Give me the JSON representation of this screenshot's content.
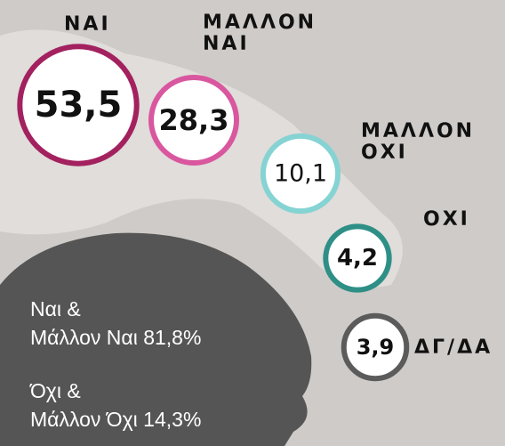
{
  "chart_data": {
    "type": "bubble",
    "categories": [
      "ΝΑΙ",
      "ΜΑΛΛΟΝ ΝΑΙ",
      "ΜΑΛΛΟΝ ΟΧΙ",
      "ΟΧΙ",
      "ΔΓ/ΔΑ"
    ],
    "values": [
      53.5,
      28.3,
      10.1,
      4.2,
      3.9
    ],
    "value_labels": [
      "53,5",
      "28,3",
      "10,1",
      "4,2",
      "3,9"
    ],
    "colors": [
      "#a3215f",
      "#d9579f",
      "#86d3d3",
      "#2e8f86",
      "#5b5b5b"
    ],
    "annotations": [
      [
        "Ναι &",
        "Μάλλον Ναι 81,8%"
      ],
      [
        "Όχι &",
        "Μάλλον Όχι 14,3%"
      ]
    ]
  }
}
